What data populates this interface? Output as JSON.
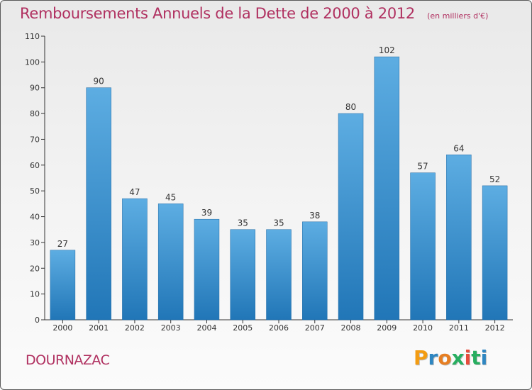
{
  "chart_data": {
    "type": "bar",
    "title": "Remboursements Annuels de la Dette de 2000 à 2012",
    "subtitle": "(en milliers d'€)",
    "categories": [
      "2000",
      "2001",
      "2002",
      "2003",
      "2004",
      "2005",
      "2006",
      "2007",
      "2008",
      "2009",
      "2010",
      "2011",
      "2012"
    ],
    "values": [
      27,
      90,
      47,
      45,
      39,
      35,
      35,
      38,
      80,
      102,
      57,
      64,
      52
    ],
    "ylim": [
      0,
      110
    ],
    "yticks": [
      0,
      10,
      20,
      30,
      40,
      50,
      60,
      70,
      80,
      90,
      100,
      110
    ],
    "xlabel": "",
    "ylabel": "",
    "grid": false,
    "legend": "none",
    "data_labels": true
  },
  "footer": {
    "commune": "DOURNAZAC"
  },
  "brand": {
    "logo_text": "Proxiti",
    "logo_colors": [
      "#f39c12",
      "#2e86c1",
      "#e67e22",
      "#27ae60",
      "#e74c3c",
      "#27ae60",
      "#2e86c1"
    ]
  },
  "colors": {
    "bar_top": "#5dade2",
    "bar_bottom": "#2176b7",
    "title": "#b03060",
    "axis": "#333333"
  }
}
